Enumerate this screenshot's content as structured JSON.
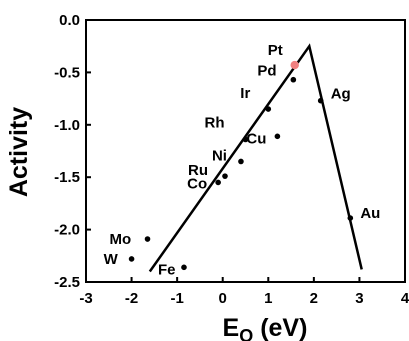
{
  "chart_data": {
    "type": "scatter",
    "title": "",
    "xlabel": {
      "main": "E",
      "subscript": "O",
      "unit": " (eV)"
    },
    "ylabel": "Activity",
    "xlim": [
      -3,
      4
    ],
    "ylim": [
      -2.5,
      0.0
    ],
    "xticks": [
      -3,
      -2,
      -1,
      0,
      1,
      2,
      3,
      4
    ],
    "xtick_labels": [
      "-3",
      "-2",
      "-1",
      "0",
      "1",
      "2",
      "3",
      "4"
    ],
    "yticks": [
      0.0,
      -0.5,
      -1.0,
      -1.5,
      -2.0,
      -2.5
    ],
    "ytick_labels": [
      "0.0",
      "-0.5",
      "-1.0",
      "-1.5",
      "-2.0",
      "-2.5"
    ],
    "grid": false,
    "volcano_lines": [
      {
        "name": "",
        "color": "#000000",
        "points": [
          [
            -1.6,
            -2.4
          ],
          [
            1.9,
            -0.25
          ],
          [
            3.05,
            -2.38
          ]
        ]
      }
    ],
    "points": [
      {
        "label": "Pt",
        "x": 1.58,
        "y": -0.43,
        "color": "#f08080"
      },
      {
        "label": "Pd",
        "x": 1.55,
        "y": -0.57,
        "color": "#000000"
      },
      {
        "label": "Ag",
        "x": 2.15,
        "y": -0.77,
        "color": "#000000"
      },
      {
        "label": "Ir",
        "x": 1.0,
        "y": -0.85,
        "color": "#000000"
      },
      {
        "label": "Cu",
        "x": 1.2,
        "y": -1.11,
        "color": "#000000"
      },
      {
        "label": "Rh",
        "x": 0.5,
        "y": -1.14,
        "color": "#000000"
      },
      {
        "label": "Ni",
        "x": 0.4,
        "y": -1.35,
        "color": "#000000"
      },
      {
        "label": "Ru",
        "x": 0.05,
        "y": -1.49,
        "color": "#000000"
      },
      {
        "label": "Co",
        "x": -0.1,
        "y": -1.55,
        "color": "#000000"
      },
      {
        "label": "Au",
        "x": 2.8,
        "y": -1.89,
        "color": "#000000"
      },
      {
        "label": "Mo",
        "x": -1.65,
        "y": -2.09,
        "color": "#000000"
      },
      {
        "label": "W",
        "x": -2.0,
        "y": -2.28,
        "color": "#000000"
      },
      {
        "label": "Fe",
        "x": -0.85,
        "y": -2.36,
        "color": "#000000"
      }
    ]
  }
}
